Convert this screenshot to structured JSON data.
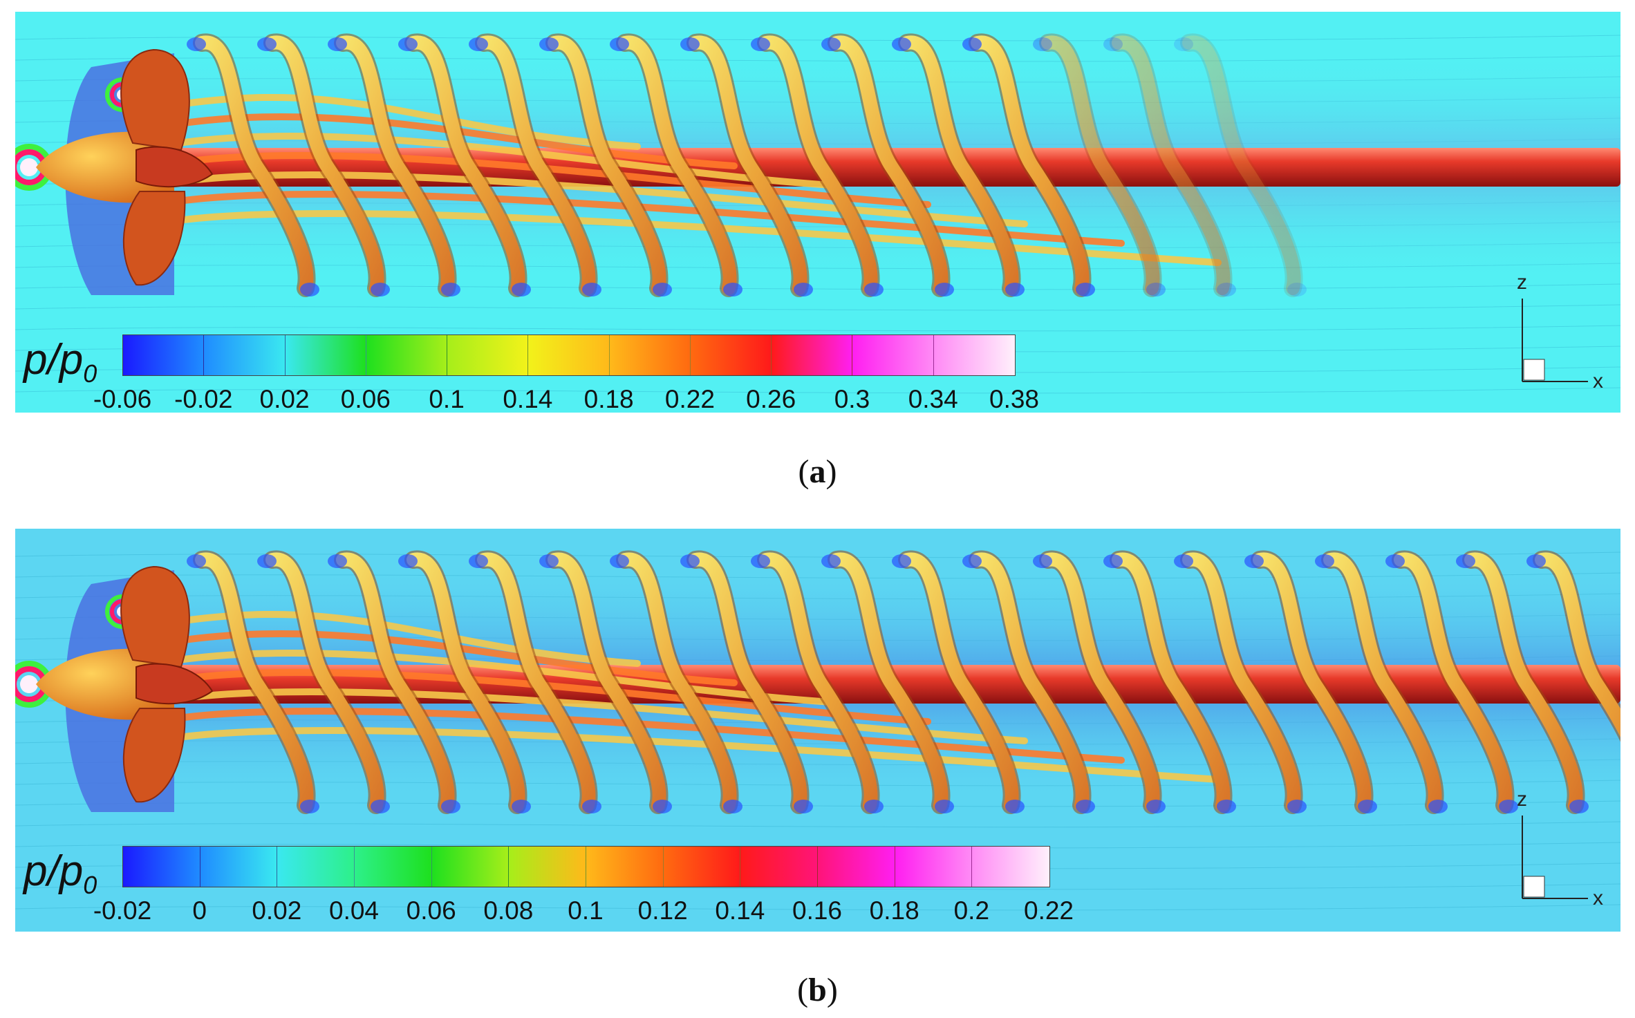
{
  "panels": [
    {
      "id": "a",
      "caption_open": "(",
      "caption_letter": "a",
      "caption_close": ")",
      "colorbar_label": "p/p",
      "colorbar_label_sub": "0",
      "colorbar_ticks": [
        "-0.06",
        "-0.02",
        "0.02",
        "0.06",
        "0.1",
        "0.14",
        "0.18",
        "0.22",
        "0.26",
        "0.3",
        "0.34",
        "0.38"
      ],
      "axis_labels": {
        "vertical": "z",
        "horizontal": "x"
      },
      "background": "#53f0f3",
      "wake_band_color": "#62b8ea",
      "vortex_count": 15,
      "hub_vortex_length_fraction": 1.0
    },
    {
      "id": "b",
      "caption_open": "(",
      "caption_letter": "b",
      "caption_close": ")",
      "colorbar_label": "p/p",
      "colorbar_label_sub": "0",
      "colorbar_ticks": [
        "-0.02",
        "0",
        "0.02",
        "0.04",
        "0.06",
        "0.08",
        "0.1",
        "0.12",
        "0.14",
        "0.16",
        "0.18",
        "0.2",
        "0.22"
      ],
      "axis_labels": {
        "vertical": "z",
        "horizontal": "x"
      },
      "background": "#5cd6f2",
      "wake_band_color": "#4a90e6",
      "vortex_count": 20,
      "hub_vortex_length_fraction": 1.0
    }
  ],
  "colormap": [
    "#1a1aff",
    "#1f8cff",
    "#3ae8f0",
    "#2df08a",
    "#1ee01e",
    "#a6ee1a",
    "#f2f21a",
    "#ffb91a",
    "#ff6a10",
    "#ff1a1a",
    "#ff1478",
    "#ff1ef0",
    "#ff8af5",
    "#fff0fb"
  ],
  "colors": {
    "tip_vortex_light": "#f7e36a",
    "tip_vortex_dark": "#d9772a",
    "hub_vortex": "#e83a2a",
    "blade": "#d2541e"
  }
}
